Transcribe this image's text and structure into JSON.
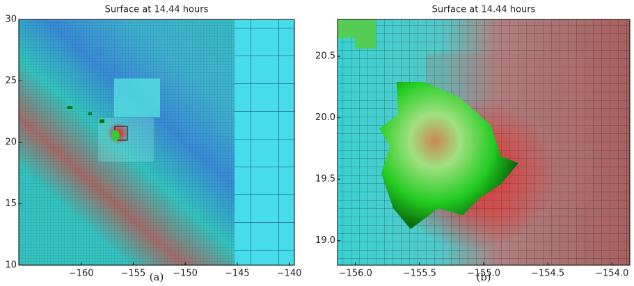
{
  "chart_data": [
    {
      "type": "heatmap",
      "title": "Surface at 14.44 hours",
      "caption": "(a)",
      "xlim": [
        -166,
        -139.5
      ],
      "ylim": [
        10,
        30
      ],
      "xticks": [
        {
          "value": -160,
          "label": "−160"
        },
        {
          "value": -155,
          "label": "−155"
        },
        {
          "value": -150,
          "label": "−150"
        },
        {
          "value": -145,
          "label": "−145"
        },
        {
          "value": -140,
          "label": "−140"
        }
      ],
      "yticks": [
        10,
        15,
        20,
        25,
        30
      ]
    },
    {
      "type": "heatmap",
      "title": "Surface at 14.44 hours",
      "caption": "(b)",
      "xlim": [
        -156.14,
        -153.86
      ],
      "ylim": [
        18.8,
        20.8
      ],
      "xticks": [
        {
          "value": -156,
          "label": "−156.0"
        },
        {
          "value": -155.5,
          "label": "−155.5"
        },
        {
          "value": -155,
          "label": "−155.0"
        },
        {
          "value": -154.5,
          "label": "−154.5"
        },
        {
          "value": -154,
          "label": "−154.0"
        }
      ],
      "yticks": [
        {
          "value": 19,
          "label": "19.0"
        },
        {
          "value": 19.5,
          "label": "19.5"
        },
        {
          "value": 20,
          "label": "20.0"
        },
        {
          "value": 20.5,
          "label": "20.5"
        }
      ]
    }
  ]
}
